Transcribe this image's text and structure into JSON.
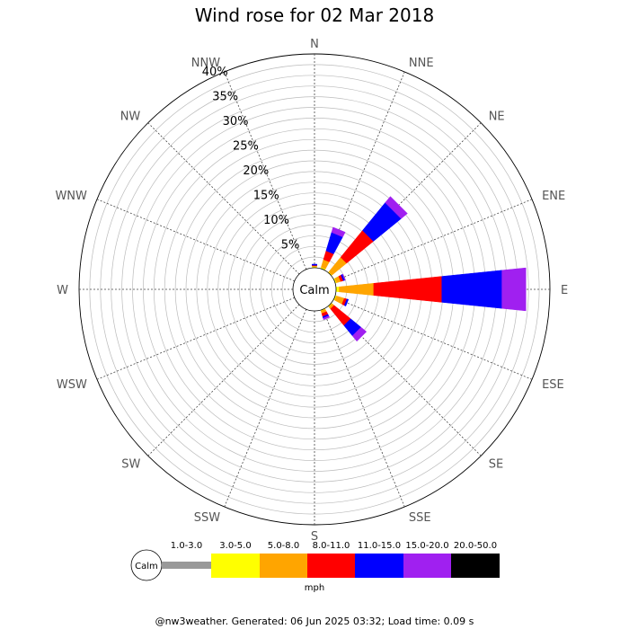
{
  "chart_data": {
    "type": "windrose",
    "title": "Wind rose for 02 Mar 2018",
    "directions": [
      "N",
      "NNE",
      "NE",
      "ENE",
      "E",
      "ESE",
      "SE",
      "SSE",
      "S",
      "SSW",
      "SW",
      "WSW",
      "W",
      "WNW",
      "NW",
      "NNW"
    ],
    "ring_labels": [
      "5%",
      "10%",
      "15%",
      "20%",
      "25%",
      "30%",
      "35%",
      "40%"
    ],
    "rmax": 40,
    "calm_label": "Calm",
    "speed_bins": [
      {
        "label": "1.0-3.0",
        "color": "#999999"
      },
      {
        "label": "3.0-5.0",
        "color": "#ffff00"
      },
      {
        "label": "5.0-8.0",
        "color": "#ffa500"
      },
      {
        "label": "8.0-11.0",
        "color": "#ff0000"
      },
      {
        "label": "11.0-15.0",
        "color": "#0000ff"
      },
      {
        "label": "15.0-20.0",
        "color": "#a020f0"
      },
      {
        "label": "20.0-50.0",
        "color": "#000000"
      }
    ],
    "unit": "mph",
    "series": [
      {
        "direction": "N",
        "values": [
          0,
          0.2,
          0.2,
          0.1,
          0.2,
          0,
          0
        ]
      },
      {
        "direction": "NNE",
        "values": [
          0,
          0.3,
          1.5,
          1.7,
          3.6,
          1.0,
          0
        ]
      },
      {
        "direction": "NE",
        "values": [
          0,
          0.2,
          3.5,
          6.5,
          6.7,
          1.5,
          0
        ]
      },
      {
        "direction": "ENE",
        "values": [
          0,
          0.3,
          0.8,
          0.5,
          0.3,
          0.1,
          0
        ]
      },
      {
        "direction": "E",
        "values": [
          0,
          0.6,
          6.5,
          12.8,
          11.3,
          4.5,
          0
        ]
      },
      {
        "direction": "ESE",
        "values": [
          0,
          0.3,
          1.5,
          0.5,
          0.3,
          0,
          0
        ]
      },
      {
        "direction": "SE",
        "values": [
          0,
          0.2,
          0.5,
          4.0,
          2.5,
          1.3,
          0
        ]
      },
      {
        "direction": "SSE",
        "values": [
          0,
          0.2,
          0.5,
          0.6,
          0.3,
          0.3,
          0
        ]
      }
    ]
  },
  "footer": "@nw3weather. Generated: 06 Jun 2025 03:32; Load time: 0.09 s"
}
